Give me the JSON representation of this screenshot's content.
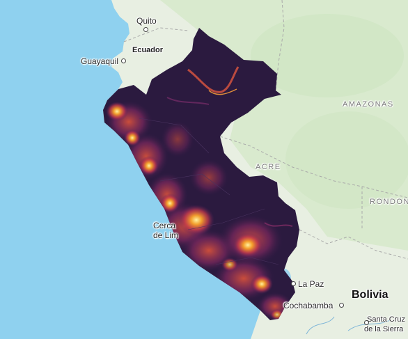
{
  "map": {
    "labels": {
      "quito": "Quito",
      "ecuador": "Ecuador",
      "guayaquil": "Guayaquil",
      "amazonas": "AMAZONAS",
      "acre": "ACRE",
      "rondonia": "RONDONI",
      "cerca_de_lima_1": "Cerca",
      "cerca_de_lima_2": "de Lim",
      "la_paz": "La Paz",
      "bolivia": "Bolivia",
      "cochabamba": "Cochabamba",
      "santa_cruz_1": "Santa Cruz",
      "santa_cruz_2": "de la Sierra"
    },
    "colors": {
      "ocean": "#8fd1ef",
      "land": "#e8efe2",
      "forest": "#d5e8c9",
      "overlay_base": "#2b1a3f",
      "heat_low": "#6b2a6b",
      "heat_mid": "#c0404b",
      "heat_high": "#f5a623",
      "heat_peak": "#ffe680",
      "lake": "#9fd4ee"
    },
    "overlay": {
      "region": "Peru",
      "colormap": "inferno"
    }
  }
}
